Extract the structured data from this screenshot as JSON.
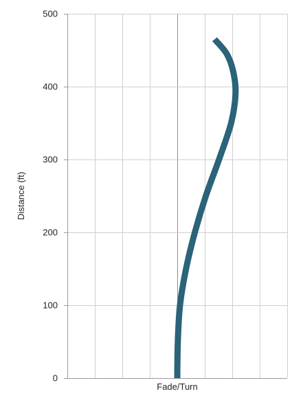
{
  "chart_data": {
    "type": "line",
    "title": "",
    "xlabel": "Fade/Turn",
    "ylabel": "Distance (ft)",
    "ylim": [
      0,
      500
    ],
    "y_ticks": [
      "0",
      "100",
      "200",
      "300",
      "400",
      "500"
    ],
    "grid": true,
    "legend": "none",
    "series": [
      {
        "color": "#2b6378",
        "points": [
          {
            "offset": 0.0,
            "distance": 0
          },
          {
            "offset": 0.05,
            "distance": 50
          },
          {
            "offset": 0.25,
            "distance": 100
          },
          {
            "offset": 0.8,
            "distance": 150
          },
          {
            "offset": 1.6,
            "distance": 200
          },
          {
            "offset": 2.6,
            "distance": 250
          },
          {
            "offset": 3.8,
            "distance": 300
          },
          {
            "offset": 4.9,
            "distance": 350
          },
          {
            "offset": 5.3,
            "distance": 390
          },
          {
            "offset": 5.1,
            "distance": 420
          },
          {
            "offset": 4.5,
            "distance": 445
          },
          {
            "offset": 3.4,
            "distance": 465
          }
        ]
      }
    ],
    "xlim": [
      -10,
      10
    ]
  }
}
